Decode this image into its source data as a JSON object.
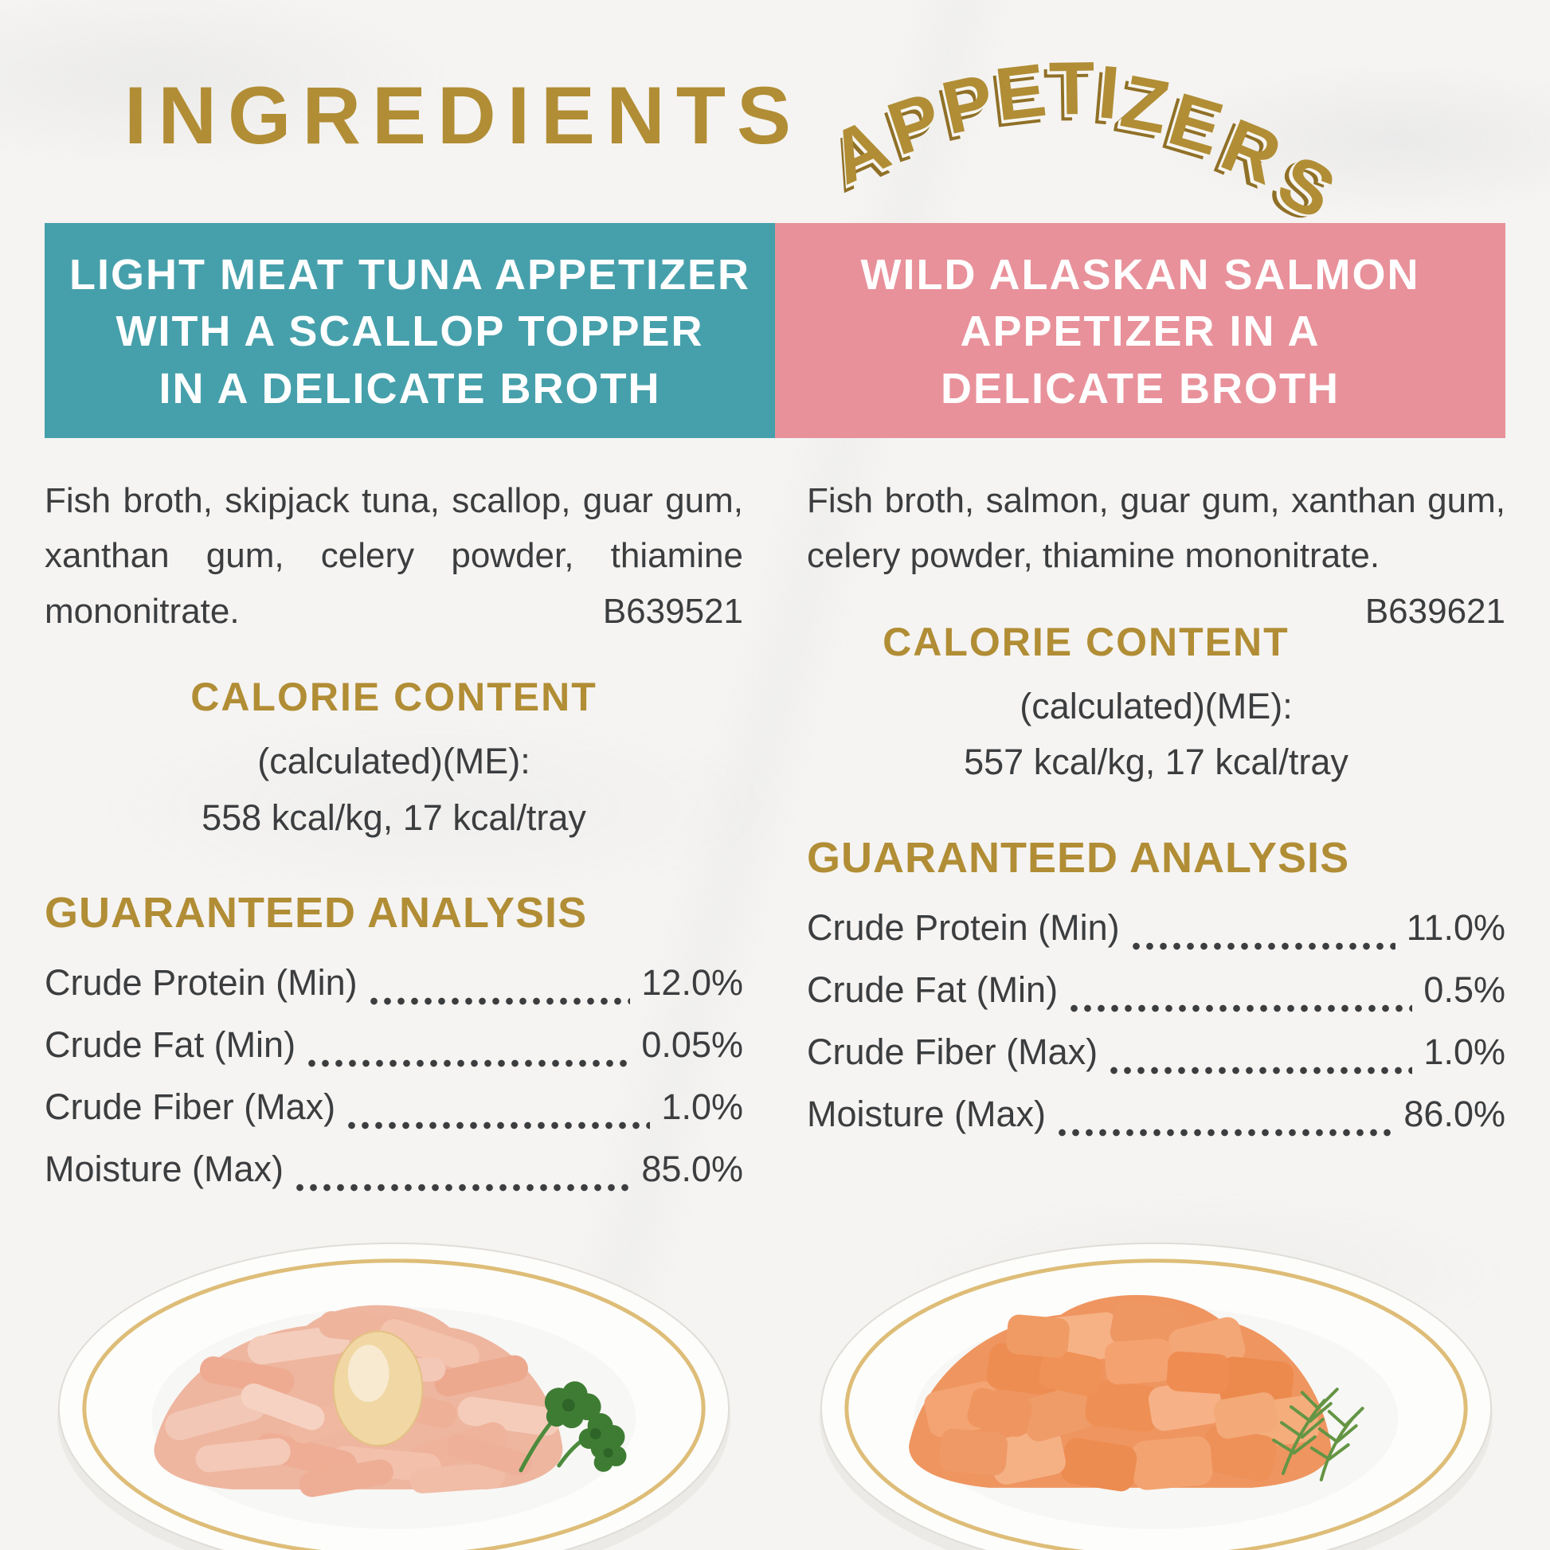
{
  "header": {
    "title": "INGREDIENTS",
    "arc_title": "APPETIZERS"
  },
  "colors": {
    "gold": "#b18d36",
    "teal": "#45a0ab",
    "pink": "#e8919b",
    "ink": "#3c3d3f",
    "plate_rim_gold": "#ddbd77"
  },
  "columns": [
    {
      "id": "tuna",
      "accent": "#45a0ab",
      "header_lines": [
        "LIGHT MEAT TUNA APPETIZER",
        "WITH A SCALLOP TOPPER",
        "IN A DELICATE BROTH"
      ],
      "ingredients_text": "Fish broth, skipjack tuna, scallop, guar gum, xanthan gum, celery powder, thiamine mononitrate.",
      "batch_code": "B639521",
      "calorie": {
        "heading": "CALORIE CONTENT",
        "line1": "(calculated)(ME):",
        "line2": "558 kcal/kg, 17 kcal/tray"
      },
      "analysis": {
        "heading": "GUARANTEED ANALYSIS",
        "rows": [
          {
            "label": "Crude Protein (Min)",
            "value": "12.0%"
          },
          {
            "label": "Crude Fat (Min)",
            "value": "0.05%"
          },
          {
            "label": "Crude Fiber (Max)",
            "value": "1.0%"
          },
          {
            "label": "Moisture (Max)",
            "value": "85.0%"
          }
        ]
      },
      "photo": "tuna-appetizer-plate-with-scallop-and-parsley"
    },
    {
      "id": "salmon",
      "accent": "#e8919b",
      "header_lines": [
        "WILD ALASKAN SALMON",
        "APPETIZER IN A",
        "DELICATE BROTH"
      ],
      "ingredients_text": "Fish broth, salmon, guar gum, xanthan gum, celery powder, thiamine mononitrate.",
      "batch_code": "B639621",
      "calorie": {
        "heading": "CALORIE CONTENT",
        "line1": "(calculated)(ME):",
        "line2": "557 kcal/kg, 17 kcal/tray"
      },
      "analysis": {
        "heading": "GUARANTEED ANALYSIS",
        "rows": [
          {
            "label": "Crude Protein (Min)",
            "value": "11.0%"
          },
          {
            "label": "Crude Fat (Min)",
            "value": "0.5%"
          },
          {
            "label": "Crude Fiber (Max)",
            "value": "1.0%"
          },
          {
            "label": "Moisture (Max)",
            "value": "86.0%"
          }
        ]
      },
      "photo": "salmon-appetizer-plate-with-dill"
    }
  ]
}
